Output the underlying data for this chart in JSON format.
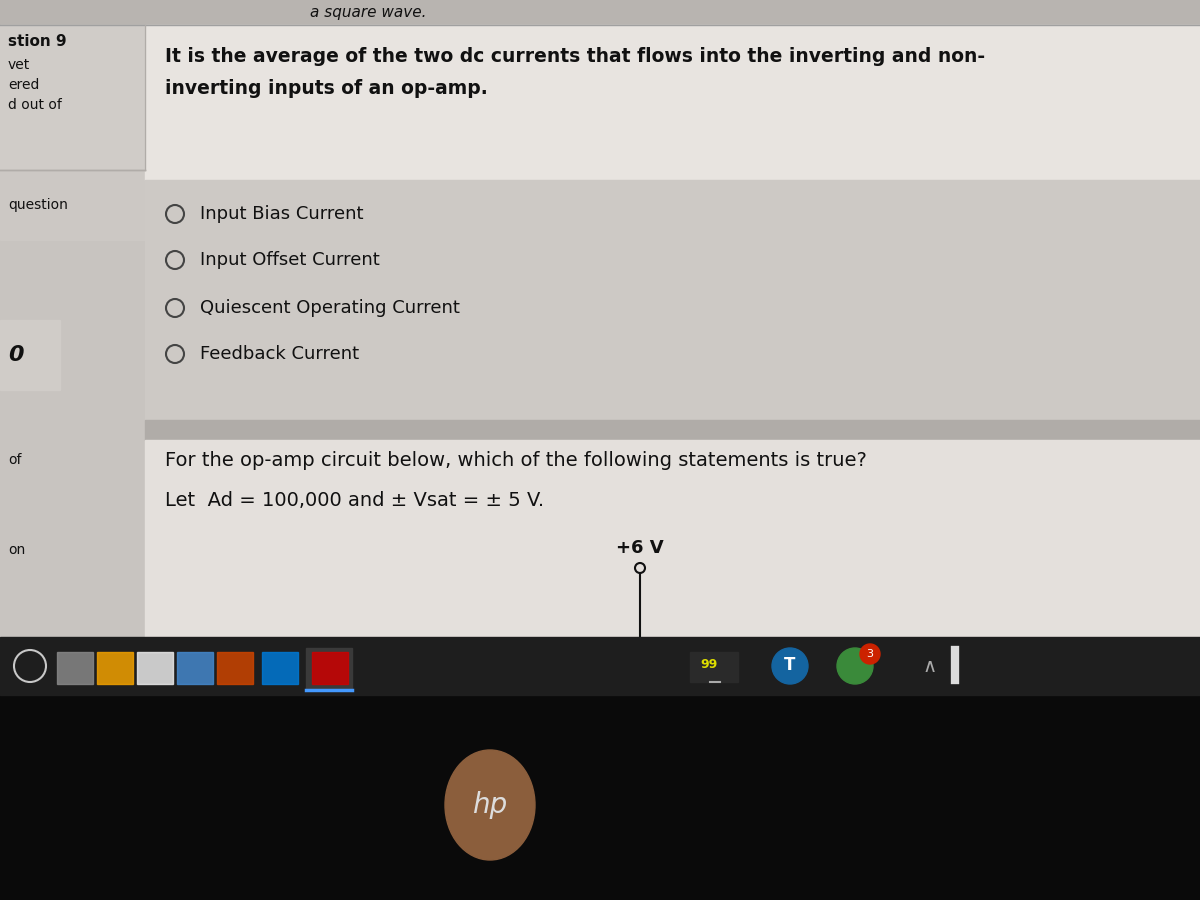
{
  "bg_screen_color": "#c8c4c0",
  "bg_top_strip_color": "#b8b4b0",
  "left_panel_color": "#b8b4ae",
  "q1_box_color": "#dedad6",
  "options_area_color": "#ccc8c4",
  "q2_box_color": "#e8e4e0",
  "taskbar_color": "#1c1c1c",
  "bottom_bezel_color": "#111111",
  "hp_bg_color": "#8B6040",
  "text_color": "#111111",
  "text_color_white": "#ffffff",
  "radio_color": "#444444",
  "title_top": "a square wave.",
  "question_label": "stion 9",
  "side_labels_top": [
    "vet",
    "ered",
    "d out of"
  ],
  "side_label_question": "question",
  "side_label_0": "0",
  "side_label_of": "of",
  "side_label_on": "on",
  "question_text_line1": "It is the average of the two dc currents that flows into the inverting and non-",
  "question_text_line2": "inverting inputs of an op-amp.",
  "options": [
    "Input Bias Current",
    "Input Offset Current",
    "Quiescent Operating Current",
    "Feedback Current"
  ],
  "question2_line1": "For the op-amp circuit below, which of the following statements is true?",
  "question2_line2": "Let  Ad = 100,000 and ± Vsat = ± 5 V.",
  "voltage_label": "+6 V"
}
